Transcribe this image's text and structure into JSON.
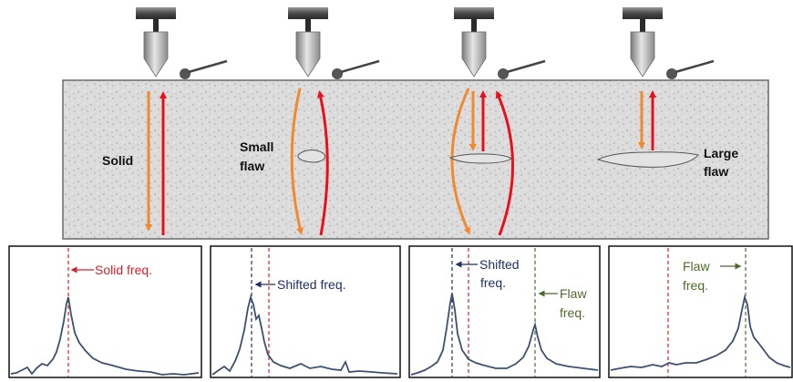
{
  "block": {
    "labels": {
      "solid": "Solid",
      "small_flaw_line1": "Small",
      "small_flaw_line2": "flaw",
      "large_flaw_line1": "Large",
      "large_flaw_line2": "flaw"
    }
  },
  "panels": [
    {
      "id": "solid",
      "annotations": [
        "Solid freq."
      ]
    },
    {
      "id": "small-flaw",
      "annotations": [
        "Shifted freq."
      ]
    },
    {
      "id": "flaw",
      "annotations": [
        "Shifted",
        "freq.",
        "Flaw",
        "freq."
      ]
    },
    {
      "id": "large-flaw",
      "annotations": [
        "Flaw",
        "freq."
      ]
    }
  ],
  "colors": {
    "incident_wave": "#f08a2e",
    "reflected_wave": "#e8101a",
    "solid_freq": "#d9202a",
    "shifted_freq": "#1f2f66",
    "flaw_freq": "#4f6a2a",
    "spectrum_line": "#3d5070",
    "concrete": "#d8d8d8"
  },
  "icons": [
    "impactor-icon",
    "receiver-sensor-icon"
  ]
}
